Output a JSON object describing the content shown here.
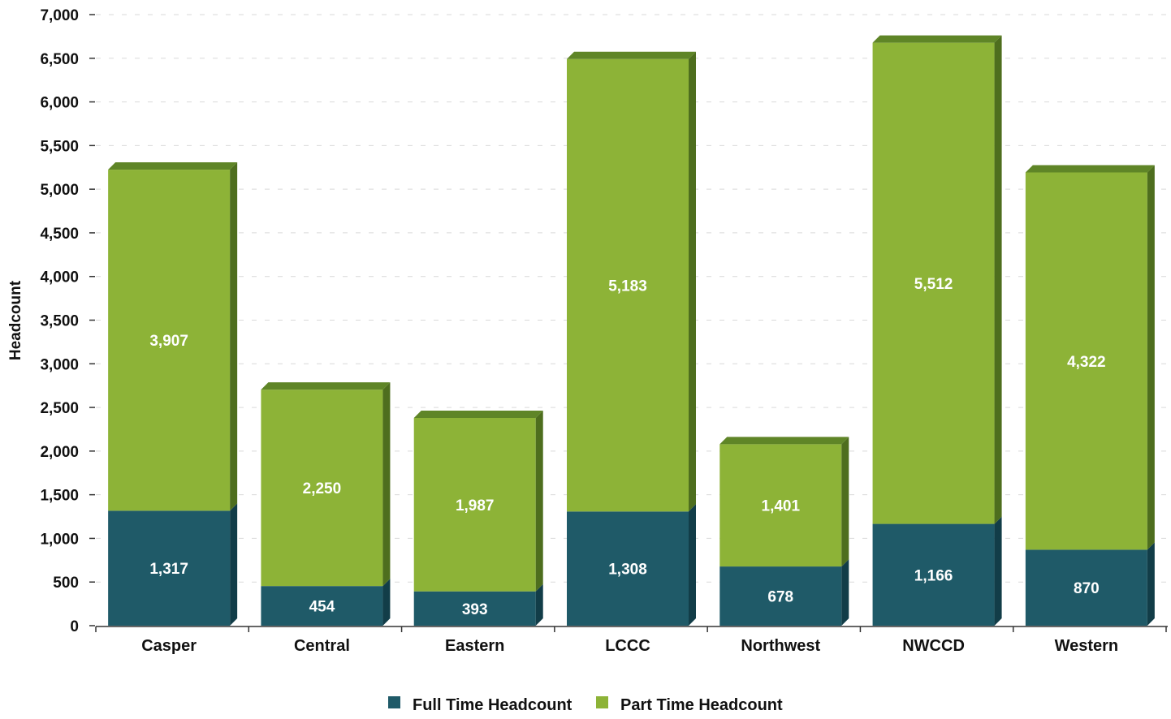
{
  "chart_data": {
    "type": "bar",
    "stacked": true,
    "three_d": true,
    "categories": [
      "Casper",
      "Central",
      "Eastern",
      "LCCC",
      "Northwest",
      "NWCCD",
      "Western"
    ],
    "series": [
      {
        "name": "Full Time Headcount",
        "values": [
          1317,
          454,
          393,
          1308,
          678,
          1166,
          870
        ],
        "labels": [
          "1,317",
          "454",
          "393",
          "1,308",
          "678",
          "1,166",
          "870"
        ]
      },
      {
        "name": "Part Time Headcount",
        "values": [
          3907,
          2250,
          1987,
          5183,
          1401,
          5512,
          4322
        ],
        "labels": [
          "3,907",
          "2,250",
          "1,987",
          "5,183",
          "1,401",
          "5,512",
          "4,322"
        ]
      }
    ],
    "ylabel": "Headcount",
    "xlabel": "",
    "ylim": [
      0,
      7000
    ],
    "yticks": [
      "0",
      "500",
      "1,000",
      "1,500",
      "2,000",
      "2,500",
      "3,000",
      "3,500",
      "4,000",
      "4,500",
      "5,000",
      "5,500",
      "6,000",
      "6,500",
      "7,000"
    ],
    "legend_position": "bottom-center",
    "grid": true,
    "colors": {
      "full_time": "#1f5a68",
      "full_time_side": "#123d48",
      "full_time_top": "#2c7282",
      "part_time": "#8db337",
      "part_time_side": "#4e6e1e",
      "part_time_top": "#5f8527",
      "gridline": "#d9d9d9"
    }
  }
}
